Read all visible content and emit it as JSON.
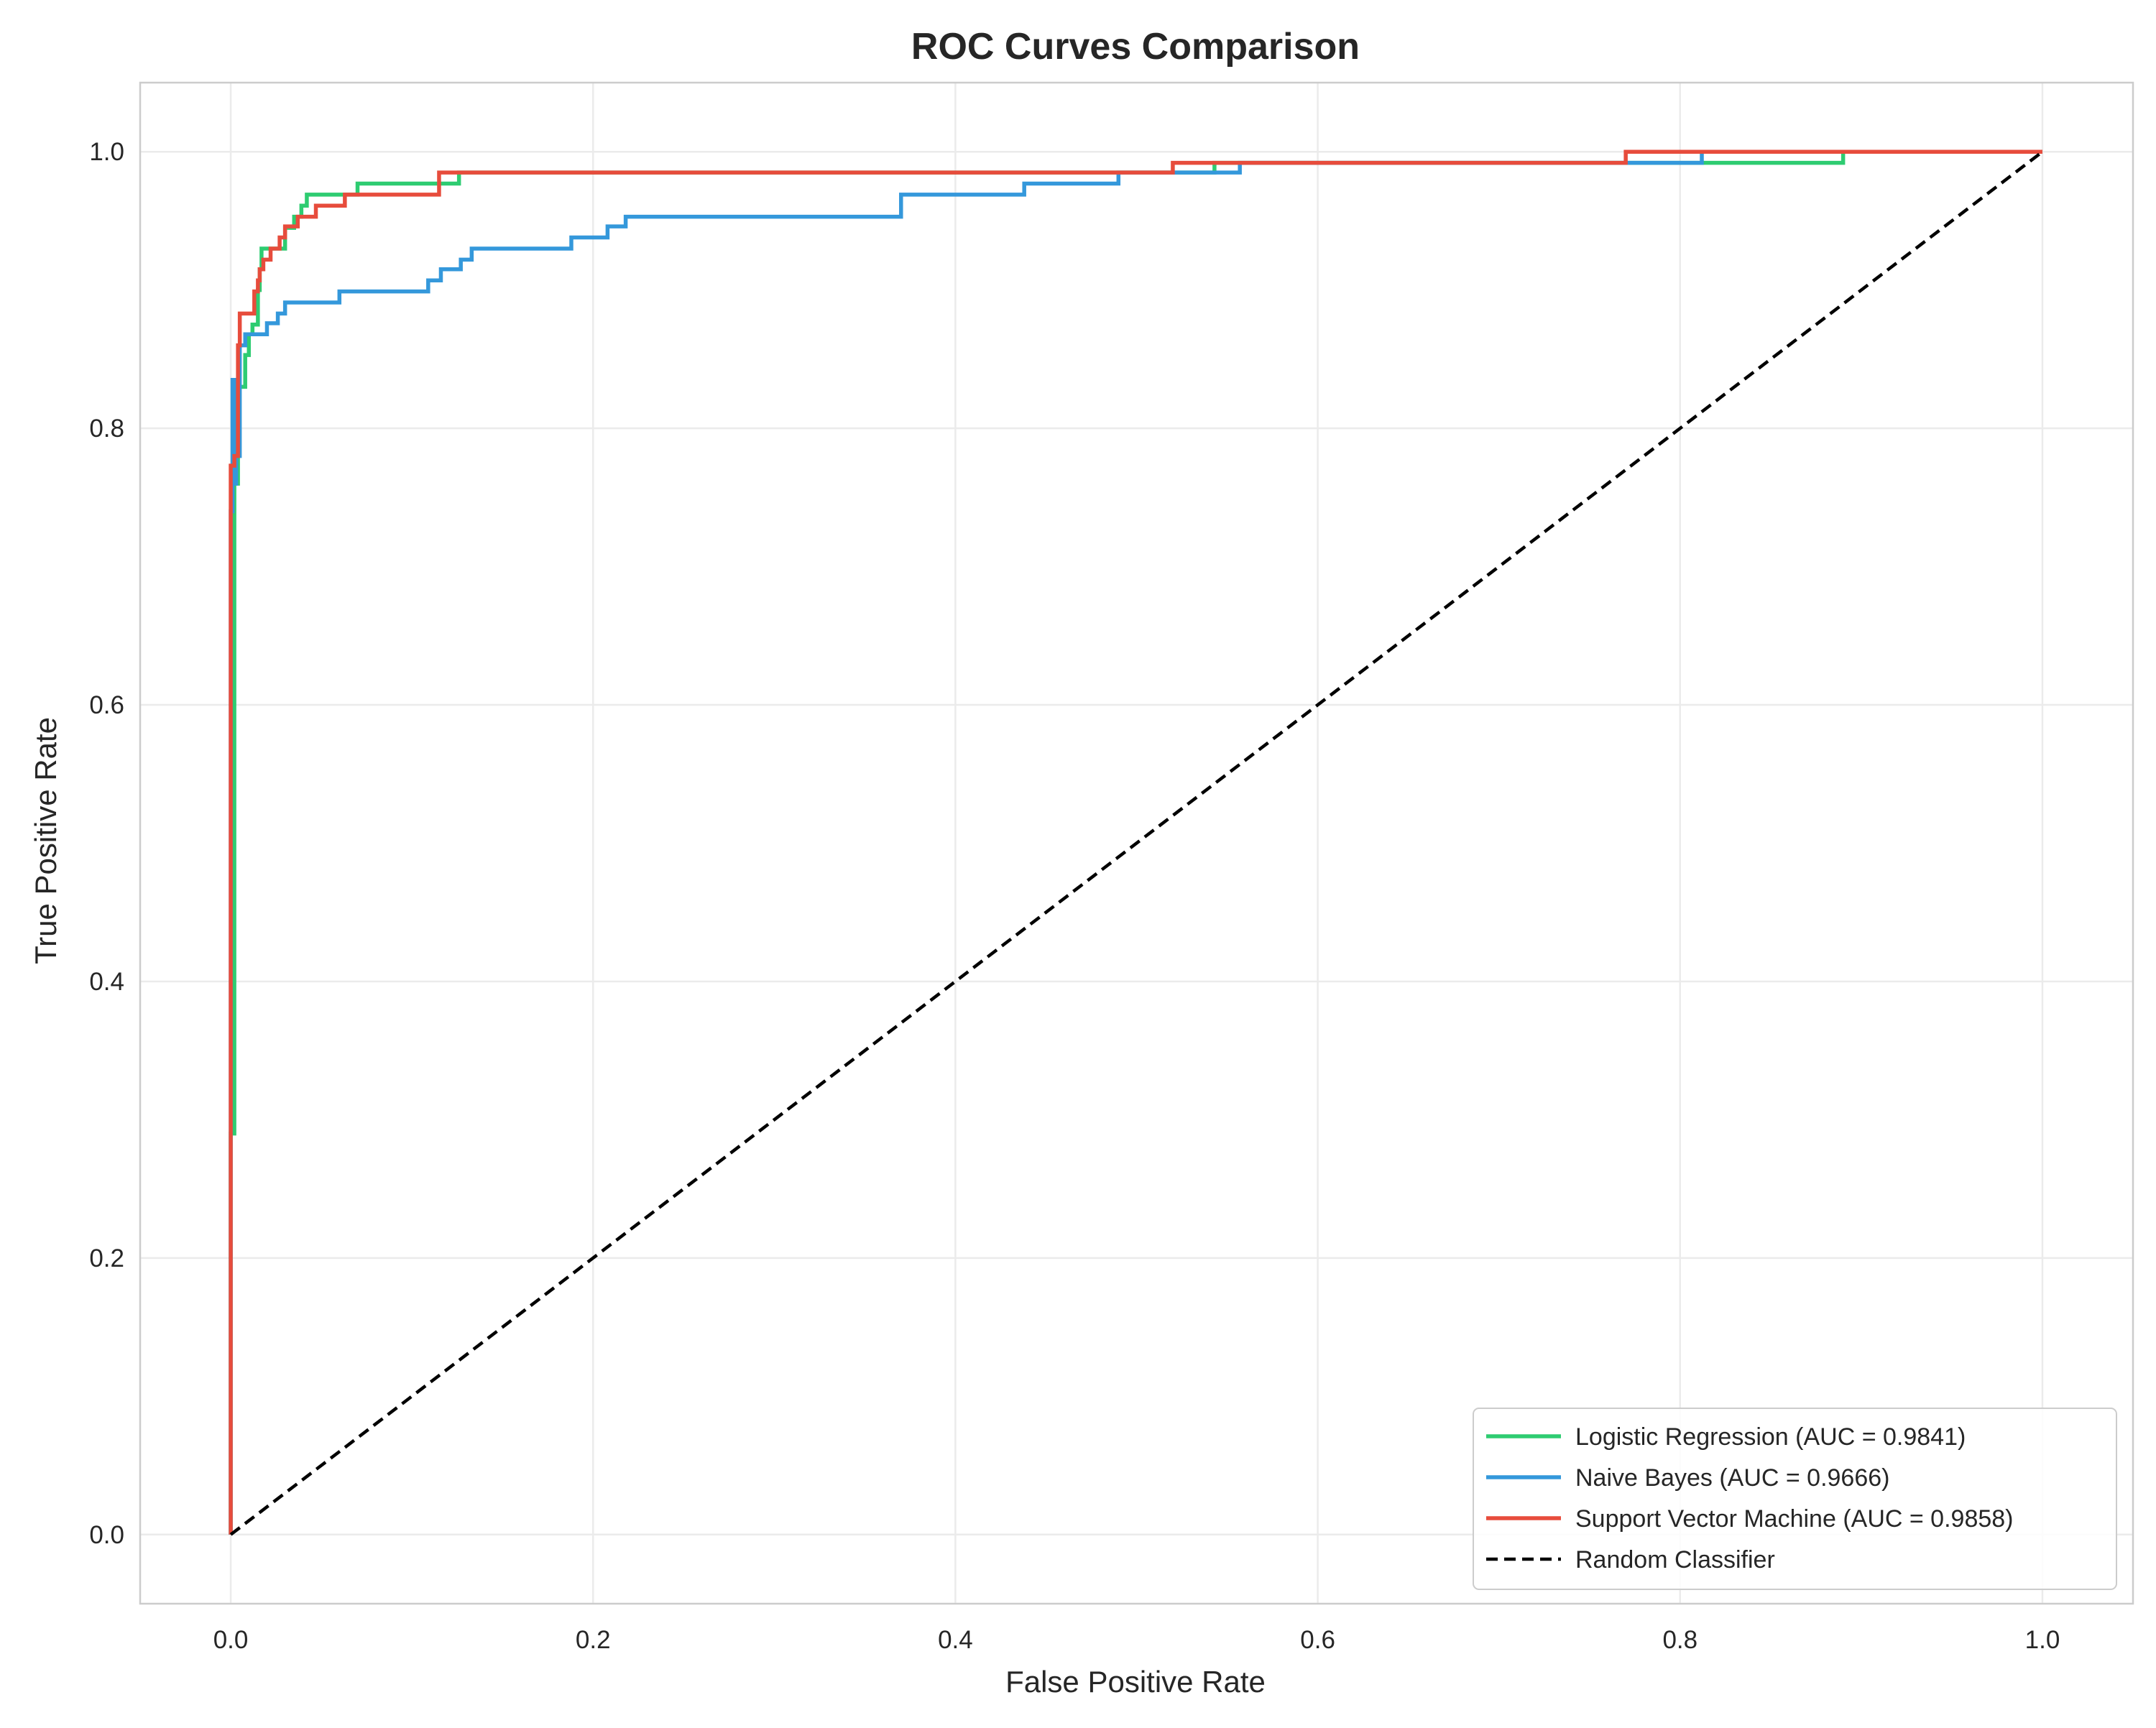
{
  "chart_data": {
    "type": "line",
    "title": "ROC Curves Comparison",
    "xlabel": "False Positive Rate",
    "ylabel": "True Positive Rate",
    "xlim": [
      -0.05,
      1.05
    ],
    "ylim": [
      -0.05,
      1.05
    ],
    "x_ticks": [
      "0.0",
      "0.2",
      "0.4",
      "0.6",
      "0.8",
      "1.0"
    ],
    "y_ticks": [
      "0.0",
      "0.2",
      "0.4",
      "0.6",
      "0.8",
      "1.0"
    ],
    "grid": true,
    "legend_position": "lower-right",
    "series": [
      {
        "name": "Logistic Regression (AUC = 0.9841)",
        "color": "#2ecc71",
        "step": true,
        "points": [
          [
            0,
            0
          ],
          [
            0,
            0.29
          ],
          [
            0.002,
            0.29
          ],
          [
            0.002,
            0.76
          ],
          [
            0.004,
            0.76
          ],
          [
            0.004,
            0.83
          ],
          [
            0.008,
            0.83
          ],
          [
            0.008,
            0.853
          ],
          [
            0.01,
            0.853
          ],
          [
            0.01,
            0.868
          ],
          [
            0.012,
            0.868
          ],
          [
            0.012,
            0.875
          ],
          [
            0.015,
            0.875
          ],
          [
            0.015,
            0.9
          ],
          [
            0.016,
            0.9
          ],
          [
            0.016,
            0.915
          ],
          [
            0.017,
            0.915
          ],
          [
            0.017,
            0.93
          ],
          [
            0.03,
            0.93
          ],
          [
            0.03,
            0.945
          ],
          [
            0.035,
            0.945
          ],
          [
            0.035,
            0.953
          ],
          [
            0.039,
            0.953
          ],
          [
            0.039,
            0.961
          ],
          [
            0.042,
            0.961
          ],
          [
            0.042,
            0.969
          ],
          [
            0.07,
            0.969
          ],
          [
            0.07,
            0.977
          ],
          [
            0.126,
            0.977
          ],
          [
            0.126,
            0.985
          ],
          [
            0.543,
            0.985
          ],
          [
            0.543,
            0.992
          ],
          [
            0.81,
            0.992
          ],
          [
            0.81,
            0.992
          ],
          [
            0.89,
            0.992
          ],
          [
            0.89,
            1.0
          ],
          [
            1.0,
            1.0
          ]
        ]
      },
      {
        "name": "Naive Bayes (AUC = 0.9666)",
        "color": "#3498db",
        "step": true,
        "points": [
          [
            0,
            0
          ],
          [
            0,
            0.74
          ],
          [
            0.001,
            0.74
          ],
          [
            0.001,
            0.835
          ],
          [
            0.002,
            0.835
          ],
          [
            0.002,
            0.76
          ],
          [
            0.003,
            0.76
          ],
          [
            0.003,
            0.78
          ],
          [
            0.005,
            0.78
          ],
          [
            0.005,
            0.86
          ],
          [
            0.008,
            0.86
          ],
          [
            0.008,
            0.868
          ],
          [
            0.02,
            0.868
          ],
          [
            0.02,
            0.876
          ],
          [
            0.026,
            0.876
          ],
          [
            0.026,
            0.883
          ],
          [
            0.03,
            0.883
          ],
          [
            0.03,
            0.891
          ],
          [
            0.06,
            0.891
          ],
          [
            0.06,
            0.899
          ],
          [
            0.109,
            0.899
          ],
          [
            0.109,
            0.907
          ],
          [
            0.116,
            0.907
          ],
          [
            0.116,
            0.915
          ],
          [
            0.127,
            0.915
          ],
          [
            0.127,
            0.922
          ],
          [
            0.133,
            0.922
          ],
          [
            0.133,
            0.93
          ],
          [
            0.188,
            0.93
          ],
          [
            0.188,
            0.938
          ],
          [
            0.208,
            0.938
          ],
          [
            0.208,
            0.946
          ],
          [
            0.218,
            0.946
          ],
          [
            0.218,
            0.953
          ],
          [
            0.37,
            0.953
          ],
          [
            0.37,
            0.969
          ],
          [
            0.438,
            0.969
          ],
          [
            0.438,
            0.977
          ],
          [
            0.49,
            0.977
          ],
          [
            0.49,
            0.985
          ],
          [
            0.557,
            0.985
          ],
          [
            0.557,
            0.992
          ],
          [
            0.812,
            0.992
          ],
          [
            0.812,
            1.0
          ],
          [
            1.0,
            1.0
          ]
        ]
      },
      {
        "name": "Support Vector Machine (AUC = 0.9858)",
        "color": "#e74c3c",
        "step": true,
        "points": [
          [
            0,
            0
          ],
          [
            0,
            0.773
          ],
          [
            0.002,
            0.773
          ],
          [
            0.002,
            0.78
          ],
          [
            0.004,
            0.78
          ],
          [
            0.004,
            0.86
          ],
          [
            0.005,
            0.86
          ],
          [
            0.005,
            0.883
          ],
          [
            0.013,
            0.883
          ],
          [
            0.013,
            0.899
          ],
          [
            0.015,
            0.899
          ],
          [
            0.015,
            0.907
          ],
          [
            0.016,
            0.907
          ],
          [
            0.016,
            0.915
          ],
          [
            0.018,
            0.915
          ],
          [
            0.018,
            0.922
          ],
          [
            0.022,
            0.922
          ],
          [
            0.022,
            0.93
          ],
          [
            0.027,
            0.93
          ],
          [
            0.027,
            0.938
          ],
          [
            0.03,
            0.938
          ],
          [
            0.03,
            0.946
          ],
          [
            0.037,
            0.946
          ],
          [
            0.037,
            0.953
          ],
          [
            0.047,
            0.953
          ],
          [
            0.047,
            0.961
          ],
          [
            0.063,
            0.961
          ],
          [
            0.063,
            0.969
          ],
          [
            0.115,
            0.969
          ],
          [
            0.115,
            0.985
          ],
          [
            0.52,
            0.985
          ],
          [
            0.52,
            0.992
          ],
          [
            0.77,
            0.992
          ],
          [
            0.77,
            1.0
          ],
          [
            1.0,
            1.0
          ]
        ]
      },
      {
        "name": "Random Classifier",
        "color": "#000000",
        "dashed": true,
        "points": [
          [
            0,
            0
          ],
          [
            1,
            1
          ]
        ]
      }
    ]
  }
}
